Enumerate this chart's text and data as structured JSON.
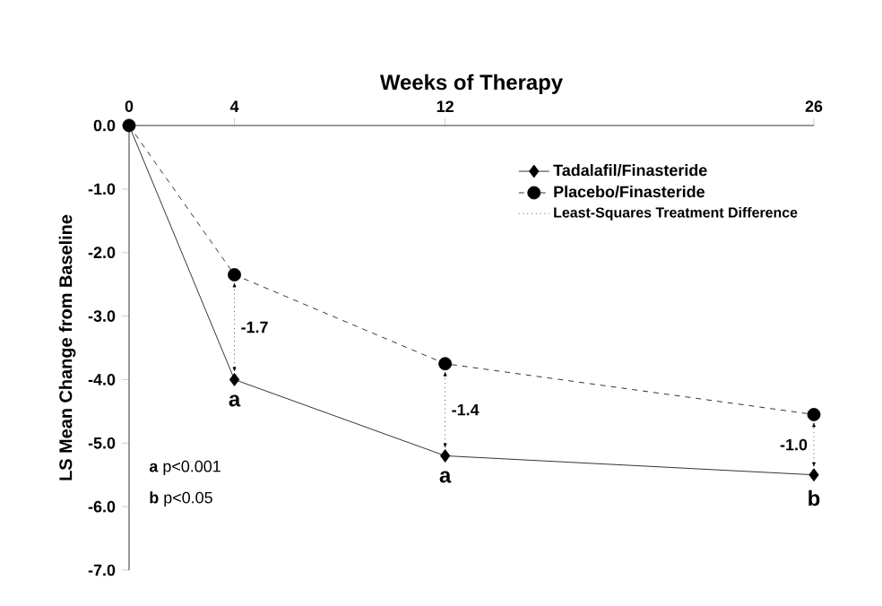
{
  "chart_data": {
    "type": "line",
    "xlabel": "Weeks of Therapy",
    "ylabel": "LS Mean Change from Baseline",
    "x": [
      0,
      4,
      12,
      26
    ],
    "series": [
      {
        "name": "Tadalafil/Finasteride",
        "color": "#000000",
        "marker": "diamond",
        "line_style": "solid",
        "values": [
          0.0,
          -4.0,
          -5.2,
          -5.5
        ]
      },
      {
        "name": "Placebo/Finasteride",
        "color": "#000000",
        "marker": "circle",
        "line_style": "dashed",
        "values": [
          0.0,
          -2.35,
          -3.75,
          -4.55
        ]
      }
    ],
    "xlim": [
      0,
      26
    ],
    "xticks": [
      0,
      4,
      12,
      26
    ],
    "ylim": [
      -7,
      0
    ],
    "yticks": [
      {
        "value": 0,
        "label": "0.0"
      },
      {
        "value": -1,
        "label": "-1.0"
      },
      {
        "value": -2,
        "label": "-2.0"
      },
      {
        "value": -3,
        "label": "-3.0"
      },
      {
        "value": -4,
        "label": "-4.0"
      },
      {
        "value": -5,
        "label": "-5.0"
      },
      {
        "value": -6,
        "label": "-6.0"
      },
      {
        "value": -7,
        "label": "-7.0"
      }
    ],
    "legend": "top right",
    "grid": false,
    "annotations": [
      "Least-Squares Treatment Difference",
      "**a** p<0.001",
      "**b** p<0.05",
      {
        "text": "-1.7",
        "x": 4,
        "y": -2.35
      },
      {
        "text": "-1.4",
        "x": 12,
        "y": -3.75
      },
      {
        "text": "-1.0",
        "x": 26,
        "y": -4.55
      },
      {
        "text": "a",
        "x": 4,
        "y": -4.0
      },
      {
        "text": "a",
        "x": 12,
        "y": -5.2
      },
      {
        "text": "b",
        "x": 26,
        "y": -5.5
      }
    ]
  }
}
